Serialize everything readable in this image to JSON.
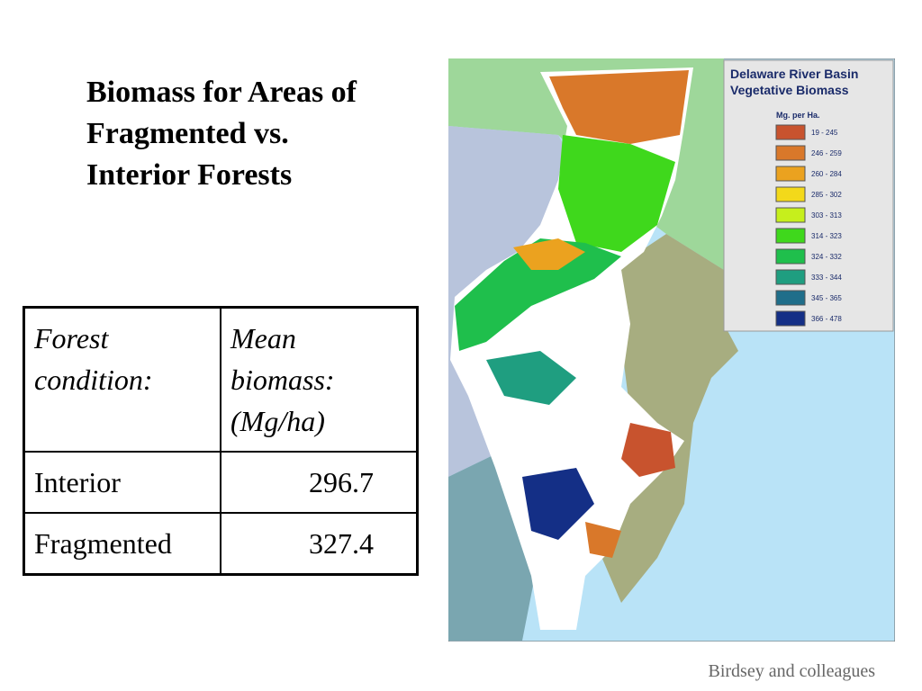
{
  "title": {
    "lines": [
      "Biomass for Areas of",
      "Fragmented vs.",
      "Interior Forests"
    ]
  },
  "table": {
    "header": [
      [
        "Forest",
        "condition:"
      ],
      [
        "Mean",
        "biomass:",
        "(Mg/ha)"
      ]
    ],
    "rows": [
      [
        "Interior",
        296.7
      ],
      [
        "Fragmented",
        327.4
      ]
    ]
  },
  "map": {
    "legend": {
      "title": [
        "Delaware River Basin",
        "Vegetative Biomass"
      ],
      "unit": "Mg. per Ha.",
      "items": [
        {
          "label": "19 - 245",
          "color": "#c8532e"
        },
        {
          "label": "246 - 259",
          "color": "#d9782a"
        },
        {
          "label": "260 - 284",
          "color": "#eba21f"
        },
        {
          "label": "285 - 302",
          "color": "#f3d91a"
        },
        {
          "label": "303 - 313",
          "color": "#c6ef1c"
        },
        {
          "label": "314 - 323",
          "color": "#3fd81c"
        },
        {
          "label": "324 - 332",
          "color": "#1fbf4c"
        },
        {
          "label": "333 - 344",
          "color": "#1f9e80"
        },
        {
          "label": "345 - 365",
          "color": "#1f6e8a"
        },
        {
          "label": "366 - 478",
          "color": "#142f86"
        }
      ]
    }
  },
  "credit": "Birdsey and colleagues"
}
